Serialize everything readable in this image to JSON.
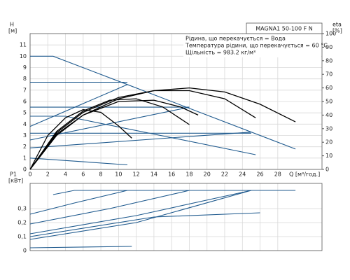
{
  "chart_data": [
    {
      "type": "line",
      "y_label": "H",
      "y_unit": "[м]",
      "y2_label": "eta",
      "y2_unit": "[%]",
      "x_label": "Q [м³/год.]",
      "header": "MAGNA1 50-100 F N",
      "annotations": [
        "Рідина, що перекачується = Вода",
        "Температура рідини, що перекачується = 60 °C",
        "Щільність = 983.2 кг/м³"
      ],
      "xlim": [
        0,
        33
      ],
      "xticks": [
        0,
        2,
        4,
        6,
        8,
        10,
        12,
        14,
        16,
        18,
        20,
        22,
        24,
        26,
        28
      ],
      "ylim": [
        0,
        12
      ],
      "yticks": [
        0,
        1,
        2,
        3,
        4,
        5,
        6,
        7,
        8,
        9,
        10,
        11
      ],
      "y2lim": [
        0,
        100
      ],
      "y2ticks": [
        0,
        10,
        20,
        30,
        40,
        50,
        60,
        70,
        80,
        90,
        100
      ],
      "grid": true,
      "series": [
        {
          "color": "#1f5a8e",
          "x": [
            0,
            2.6,
            11,
            30
          ],
          "values": [
            10,
            10,
            7.5,
            1.8
          ]
        },
        {
          "color": "#1f5a8e",
          "x": [
            0,
            11
          ],
          "values": [
            7.7,
            7.7
          ]
        },
        {
          "color": "#1f5a8e",
          "x": [
            0,
            18
          ],
          "values": [
            5.5,
            5.5
          ]
        },
        {
          "color": "#1f5a8e",
          "x": [
            0,
            25
          ],
          "values": [
            3.2,
            3.2
          ]
        },
        {
          "color": "#1f5a8e",
          "x": [
            0,
            11
          ],
          "values": [
            3.8,
            7.5
          ]
        },
        {
          "color": "#1f5a8e",
          "x": [
            0,
            18
          ],
          "values": [
            2.6,
            5.5
          ]
        },
        {
          "color": "#1f5a8e",
          "x": [
            0,
            25
          ],
          "values": [
            1.9,
            3.3
          ]
        },
        {
          "color": "#1f5a8e",
          "x": [
            0,
            4,
            25.5
          ],
          "values": [
            4.7,
            4.7,
            1.3
          ]
        },
        {
          "color": "#1f5a8e",
          "x": [
            0,
            11
          ],
          "values": [
            1.0,
            0.4
          ]
        },
        {
          "color": "#000000",
          "axis": "y2",
          "x": [
            0,
            3,
            6,
            10,
            14,
            18,
            22,
            26,
            30
          ],
          "values": [
            0,
            25,
            40,
            52,
            58,
            60,
            57,
            48,
            35
          ]
        },
        {
          "color": "#000000",
          "axis": "y2",
          "x": [
            0,
            3,
            6,
            10,
            14,
            18,
            22,
            25.5
          ],
          "values": [
            0,
            27,
            42,
            53,
            58,
            58,
            52,
            38
          ]
        },
        {
          "color": "#000000",
          "axis": "y2",
          "x": [
            0,
            3,
            6,
            9,
            12,
            15,
            18
          ],
          "values": [
            0,
            28,
            43,
            51,
            52,
            46,
            33
          ]
        },
        {
          "color": "#000000",
          "axis": "y2",
          "x": [
            0,
            3,
            6,
            10,
            14,
            17,
            19
          ],
          "values": [
            0,
            26,
            40,
            50,
            51,
            46,
            40
          ]
        },
        {
          "color": "#000000",
          "axis": "y2",
          "x": [
            0,
            2,
            4,
            6,
            8,
            10,
            11.5
          ],
          "values": [
            0,
            25,
            38,
            44,
            42,
            32,
            23
          ]
        }
      ]
    },
    {
      "type": "line",
      "y_label": "P1",
      "y_unit": "[кВт]",
      "xlim": [
        0,
        33
      ],
      "xticks": [
        0,
        2,
        4,
        6,
        8,
        10,
        12,
        14,
        16,
        18,
        20,
        22,
        24,
        26,
        28
      ],
      "ylim": [
        0,
        0.48
      ],
      "yticks": [
        0,
        {
          "value": 0.1,
          "label": "0,1"
        },
        {
          "value": 0.2,
          "label": "0,2"
        },
        {
          "value": 0.3,
          "label": "0,3"
        }
      ],
      "grid": true,
      "series": [
        {
          "color": "#1f5a8e",
          "x": [
            2.6,
            5,
            30
          ],
          "values": [
            0.4,
            0.43,
            0.43
          ]
        },
        {
          "color": "#1f5a8e",
          "x": [
            0,
            5,
            11
          ],
          "values": [
            0.26,
            0.34,
            0.43
          ]
        },
        {
          "color": "#1f5a8e",
          "x": [
            0,
            9,
            18
          ],
          "values": [
            0.19,
            0.3,
            0.43
          ]
        },
        {
          "color": "#1f5a8e",
          "x": [
            0,
            12,
            25
          ],
          "values": [
            0.12,
            0.25,
            0.43
          ]
        },
        {
          "color": "#1f5a8e",
          "x": [
            0,
            12,
            25
          ],
          "values": [
            0.08,
            0.2,
            0.43
          ]
        },
        {
          "color": "#1f5a8e",
          "x": [
            0,
            14,
            26
          ],
          "values": [
            0.1,
            0.24,
            0.27
          ]
        },
        {
          "color": "#1f5a8e",
          "x": [
            0,
            11.5
          ],
          "values": [
            0.02,
            0.03
          ]
        }
      ]
    }
  ]
}
